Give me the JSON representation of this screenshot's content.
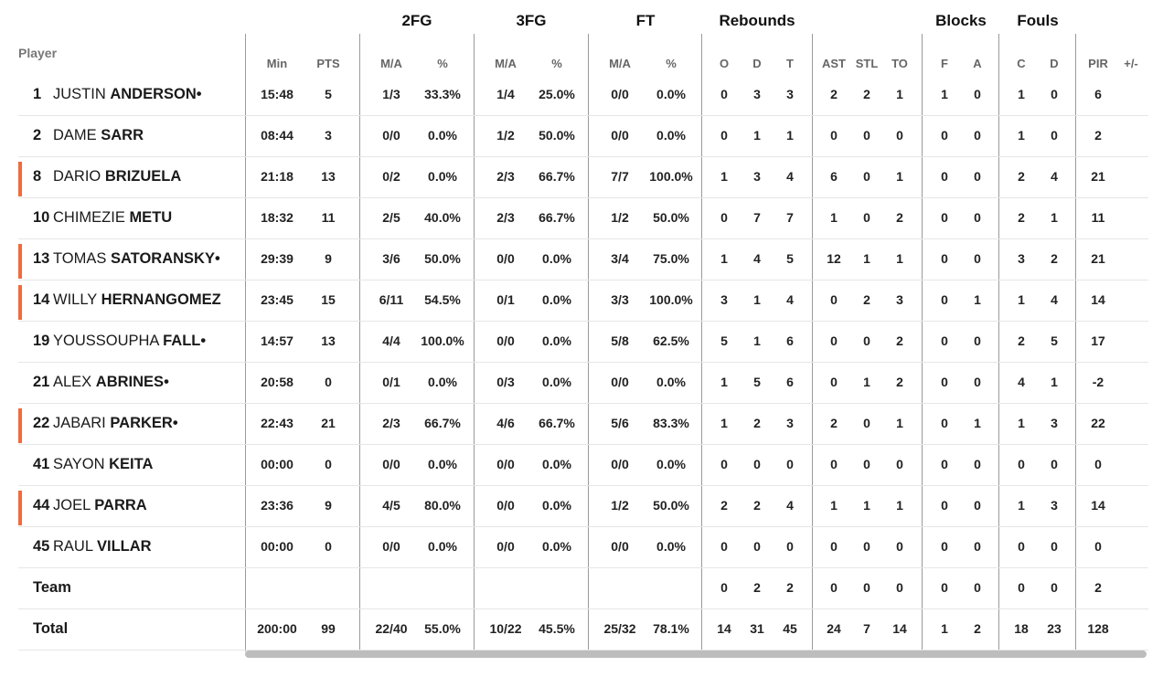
{
  "header": {
    "groups": {
      "fg2": "2FG",
      "fg3": "3FG",
      "ft": "FT",
      "rebounds": "Rebounds",
      "blocks": "Blocks",
      "fouls": "Fouls"
    },
    "player": "Player",
    "sub": {
      "min": "Min",
      "pts": "PTS",
      "fg2_ma": "M/A",
      "fg2_pct": "%",
      "fg3_ma": "M/A",
      "fg3_pct": "%",
      "ft_ma": "M/A",
      "ft_pct": "%",
      "reb_o": "O",
      "reb_d": "D",
      "reb_t": "T",
      "ast": "AST",
      "stl": "STL",
      "to": "TO",
      "blk_f": "F",
      "blk_a": "A",
      "foul_c": "C",
      "foul_d": "D",
      "pir": "PIR",
      "pm": "+/-"
    }
  },
  "accent_color": "#f26b3a",
  "rows": [
    {
      "number": "1",
      "first": "JUSTIN",
      "last": "ANDERSON",
      "mark": "•",
      "starter": false,
      "stats": [
        "15:48",
        "5",
        "1/3",
        "33.3%",
        "1/4",
        "25.0%",
        "0/0",
        "0.0%",
        "0",
        "3",
        "3",
        "2",
        "2",
        "1",
        "1",
        "0",
        "1",
        "0",
        "6",
        ""
      ]
    },
    {
      "number": "2",
      "first": "DAME",
      "last": "SARR",
      "mark": "",
      "starter": false,
      "stats": [
        "08:44",
        "3",
        "0/0",
        "0.0%",
        "1/2",
        "50.0%",
        "0/0",
        "0.0%",
        "0",
        "1",
        "1",
        "0",
        "0",
        "0",
        "0",
        "0",
        "1",
        "0",
        "2",
        ""
      ]
    },
    {
      "number": "8",
      "first": "DARIO",
      "last": "BRIZUELA",
      "mark": "",
      "starter": true,
      "stats": [
        "21:18",
        "13",
        "0/2",
        "0.0%",
        "2/3",
        "66.7%",
        "7/7",
        "100.0%",
        "1",
        "3",
        "4",
        "6",
        "0",
        "1",
        "0",
        "0",
        "2",
        "4",
        "21",
        ""
      ]
    },
    {
      "number": "10",
      "first": "CHIMEZIE",
      "last": "METU",
      "mark": "",
      "starter": false,
      "stats": [
        "18:32",
        "11",
        "2/5",
        "40.0%",
        "2/3",
        "66.7%",
        "1/2",
        "50.0%",
        "0",
        "7",
        "7",
        "1",
        "0",
        "2",
        "0",
        "0",
        "2",
        "1",
        "11",
        ""
      ]
    },
    {
      "number": "13",
      "first": "TOMAS",
      "last": "SATORANSKY",
      "mark": "•",
      "starter": true,
      "stats": [
        "29:39",
        "9",
        "3/6",
        "50.0%",
        "0/0",
        "0.0%",
        "3/4",
        "75.0%",
        "1",
        "4",
        "5",
        "12",
        "1",
        "1",
        "0",
        "0",
        "3",
        "2",
        "21",
        ""
      ]
    },
    {
      "number": "14",
      "first": "WILLY",
      "last": "HERNANGOMEZ",
      "mark": "",
      "starter": true,
      "stats": [
        "23:45",
        "15",
        "6/11",
        "54.5%",
        "0/1",
        "0.0%",
        "3/3",
        "100.0%",
        "3",
        "1",
        "4",
        "0",
        "2",
        "3",
        "0",
        "1",
        "1",
        "4",
        "14",
        ""
      ]
    },
    {
      "number": "19",
      "first": "YOUSSOUPHA",
      "last": "FALL",
      "mark": "•",
      "starter": false,
      "stats": [
        "14:57",
        "13",
        "4/4",
        "100.0%",
        "0/0",
        "0.0%",
        "5/8",
        "62.5%",
        "5",
        "1",
        "6",
        "0",
        "0",
        "2",
        "0",
        "0",
        "2",
        "5",
        "17",
        ""
      ]
    },
    {
      "number": "21",
      "first": "ALEX",
      "last": "ABRINES",
      "mark": "•",
      "starter": false,
      "stats": [
        "20:58",
        "0",
        "0/1",
        "0.0%",
        "0/3",
        "0.0%",
        "0/0",
        "0.0%",
        "1",
        "5",
        "6",
        "0",
        "1",
        "2",
        "0",
        "0",
        "4",
        "1",
        "-2",
        ""
      ]
    },
    {
      "number": "22",
      "first": "JABARI",
      "last": "PARKER",
      "mark": "•",
      "starter": true,
      "stats": [
        "22:43",
        "21",
        "2/3",
        "66.7%",
        "4/6",
        "66.7%",
        "5/6",
        "83.3%",
        "1",
        "2",
        "3",
        "2",
        "0",
        "1",
        "0",
        "1",
        "1",
        "3",
        "22",
        ""
      ]
    },
    {
      "number": "41",
      "first": "SAYON",
      "last": "KEITA",
      "mark": "",
      "starter": false,
      "stats": [
        "00:00",
        "0",
        "0/0",
        "0.0%",
        "0/0",
        "0.0%",
        "0/0",
        "0.0%",
        "0",
        "0",
        "0",
        "0",
        "0",
        "0",
        "0",
        "0",
        "0",
        "0",
        "0",
        ""
      ]
    },
    {
      "number": "44",
      "first": "JOEL",
      "last": "PARRA",
      "mark": "",
      "starter": true,
      "stats": [
        "23:36",
        "9",
        "4/5",
        "80.0%",
        "0/0",
        "0.0%",
        "1/2",
        "50.0%",
        "2",
        "2",
        "4",
        "1",
        "1",
        "1",
        "0",
        "0",
        "1",
        "3",
        "14",
        ""
      ]
    },
    {
      "number": "45",
      "first": "RAUL",
      "last": "VILLAR",
      "mark": "",
      "starter": false,
      "stats": [
        "00:00",
        "0",
        "0/0",
        "0.0%",
        "0/0",
        "0.0%",
        "0/0",
        "0.0%",
        "0",
        "0",
        "0",
        "0",
        "0",
        "0",
        "0",
        "0",
        "0",
        "0",
        "0",
        ""
      ]
    }
  ],
  "team_row": {
    "label": "Team",
    "stats": [
      "",
      "",
      "",
      "",
      "",
      "",
      "",
      "",
      "0",
      "2",
      "2",
      "0",
      "0",
      "0",
      "0",
      "0",
      "0",
      "0",
      "2",
      ""
    ]
  },
  "total_row": {
    "label": "Total",
    "stats": [
      "200:00",
      "99",
      "22/40",
      "55.0%",
      "10/22",
      "45.5%",
      "25/32",
      "78.1%",
      "14",
      "31",
      "45",
      "24",
      "7",
      "14",
      "1",
      "2",
      "18",
      "23",
      "128",
      ""
    ]
  }
}
